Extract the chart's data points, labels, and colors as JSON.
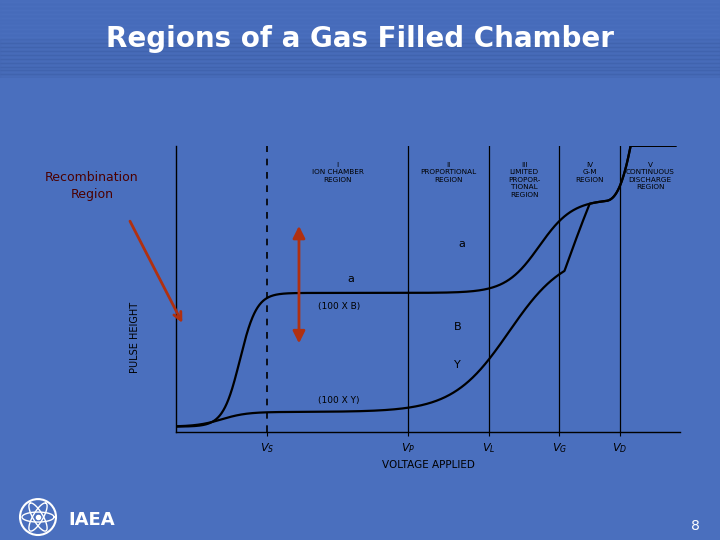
{
  "title": "Regions of a Gas Filled Chamber",
  "title_color": "#FFFFFF",
  "title_bg_color": "#2B4FA0",
  "slide_bg_color": "#4A6FBE",
  "chart_bg_color": "#F5D9B0",
  "chart_border_color": "#B03010",
  "page_number": "8",
  "recombination_label": "Recombination\nRegion",
  "xlabel": "VOLTAGE APPLIED",
  "ylabel": "PULSE HEIGHT",
  "curve_color": "#000000",
  "arrow_color": "#B03010",
  "recomb_box_color": "#F5D9B0",
  "recomb_text_color": "#4B0000",
  "iaea_text": "IAEA",
  "vs": 0.18,
  "vp": 0.46,
  "vl": 0.62,
  "vg": 0.76,
  "vd": 0.88
}
